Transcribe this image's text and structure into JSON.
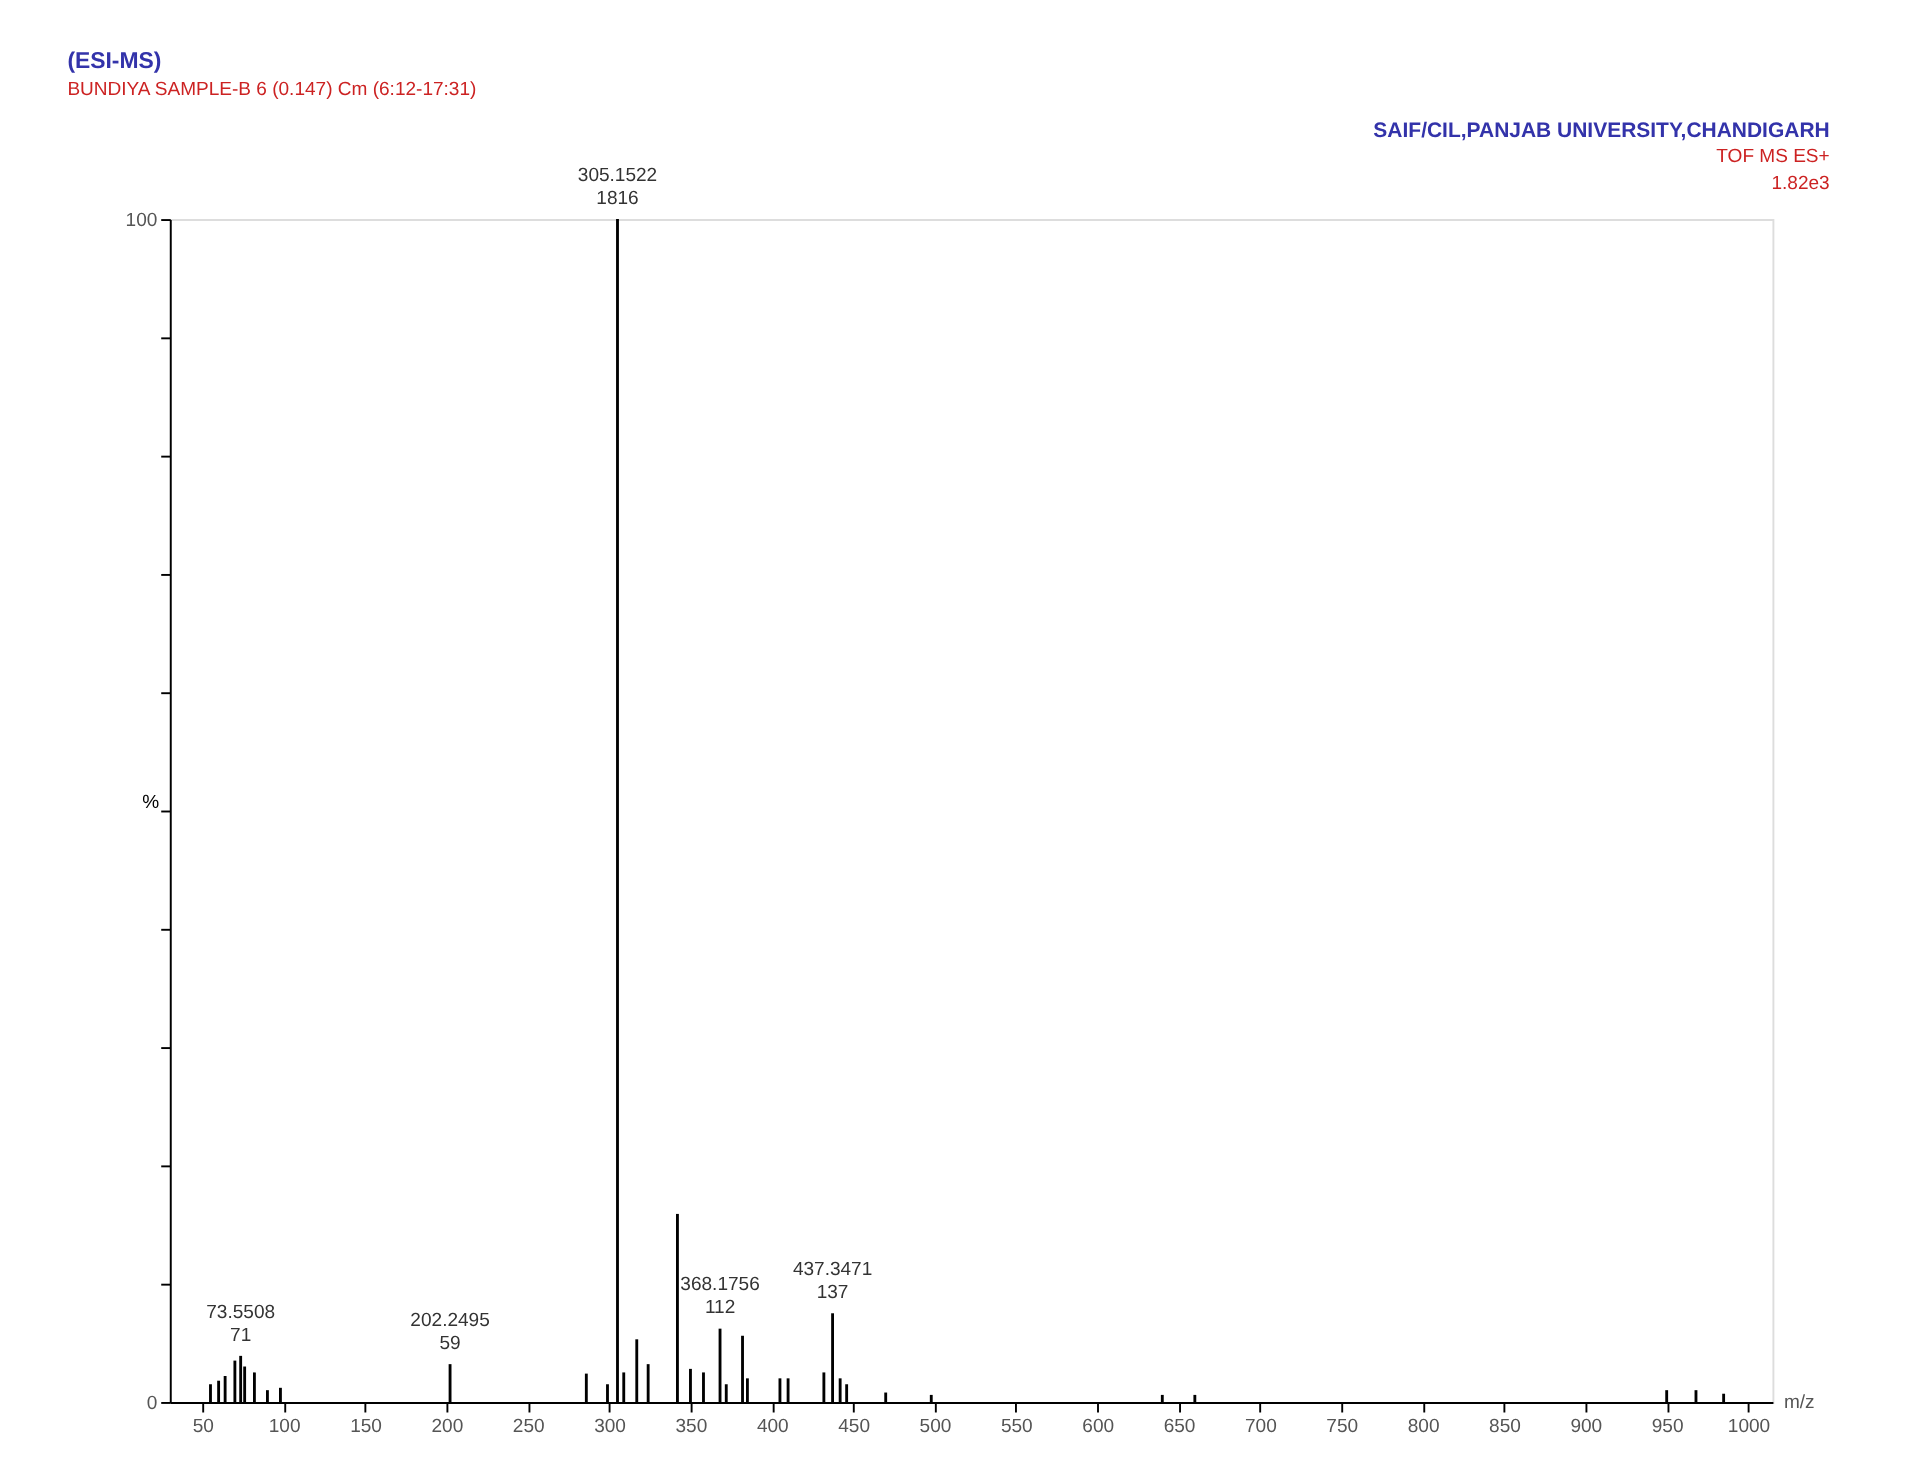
{
  "chart_data": {
    "type": "bar",
    "title": "(ESI-MS)",
    "subtitle": "BUNDIYA SAMPLE-B 6 (0.147) Cm (6:12-17:31)",
    "xlabel": "m/z",
    "ylabel": "%",
    "x": [
      55,
      60,
      64,
      70,
      73.5508,
      76,
      82,
      90,
      98,
      202.2495,
      286,
      299,
      305.1522,
      309,
      317,
      324,
      342,
      350,
      358,
      368.1756,
      372,
      382,
      385,
      405,
      410,
      432,
      437.3471,
      442,
      446,
      470,
      498,
      640,
      660,
      950,
      968,
      985
    ],
    "values": [
      1.5,
      1.8,
      2.2,
      3.5,
      3.9,
      3.0,
      2.5,
      1.0,
      1.2,
      3.2,
      2.4,
      1.5,
      100,
      2.5,
      5.3,
      3.2,
      15.9,
      2.8,
      2.5,
      6.2,
      1.5,
      5.6,
      2.0,
      2.0,
      2.0,
      2.5,
      7.5,
      2.0,
      1.5,
      0.8,
      0.6,
      0.6,
      0.6,
      1.0,
      1.0,
      0.7
    ],
    "color": "#000000",
    "xlim": [
      30,
      1015
    ],
    "xticks": [
      50,
      100,
      150,
      200,
      250,
      300,
      350,
      400,
      450,
      500,
      550,
      600,
      650,
      700,
      750,
      800,
      850,
      900,
      950,
      1000
    ],
    "ylim": [
      0,
      100
    ],
    "yticks": [
      0,
      {
        "value": 10,
        "label": null
      },
      {
        "value": 20,
        "label": null
      },
      {
        "value": 30,
        "label": null
      },
      {
        "value": 40,
        "label": null
      },
      {
        "value": 50,
        "label": null
      },
      {
        "value": 60,
        "label": null
      },
      {
        "value": 70,
        "label": null
      },
      {
        "value": 80,
        "label": null
      },
      {
        "value": 90,
        "label": null
      },
      100
    ],
    "grid": false,
    "annotations": [
      {
        "text": "305.1522\n1816",
        "x": 305.1522,
        "y": 100
      },
      {
        "text": "73.5508\n71",
        "x": 73.5508,
        "y": 3.9
      },
      {
        "text": "202.2495\n59",
        "x": 202.2495,
        "y": 3.2
      },
      {
        "text": "368.1756\n112",
        "x": 368.1756,
        "y": 6.2
      },
      {
        "text": "437.3471\n137",
        "x": 437.3471,
        "y": 7.5
      },
      "SAIF/CIL,PANJAB UNIVERSITY,CHANDIGARH",
      "TOF MS ES+",
      "1.82e3"
    ]
  }
}
